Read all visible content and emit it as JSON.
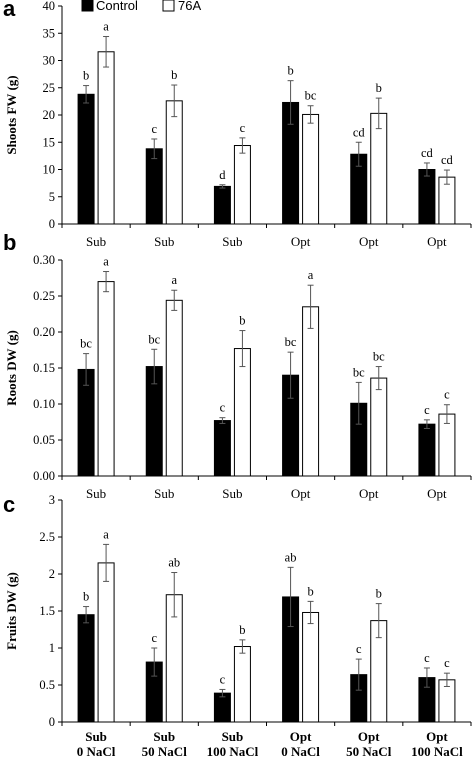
{
  "legend": [
    "Control",
    "76A"
  ],
  "colors": {
    "control": "#000000",
    "treated": "#ffffff",
    "stroke": "#000000"
  },
  "chart_data": [
    {
      "panel": "a",
      "type": "bar",
      "ylabel": "Shoots FW (g)",
      "ylim": [
        0,
        40
      ],
      "yticks": [
        "0",
        "5",
        "10",
        "15",
        "20",
        "25",
        "30",
        "35",
        "40"
      ],
      "categories": [
        [
          "Sub"
        ],
        [
          "Sub"
        ],
        [
          "Sub"
        ],
        [
          "Opt"
        ],
        [
          "Opt"
        ],
        [
          "Opt"
        ]
      ],
      "series": [
        {
          "name": "Control",
          "values": [
            23.8,
            13.8,
            6.9,
            22.3,
            12.8,
            10.0
          ],
          "errors": [
            1.6,
            1.8,
            0.3,
            4.0,
            2.2,
            1.2
          ],
          "labels": [
            "b",
            "c",
            "d",
            "b",
            "cd",
            "cd"
          ]
        },
        {
          "name": "76A",
          "values": [
            31.6,
            22.6,
            14.4,
            20.1,
            20.3,
            8.6
          ],
          "errors": [
            2.8,
            2.9,
            1.4,
            1.6,
            2.8,
            1.3
          ],
          "labels": [
            "a",
            "b",
            "c",
            "bc",
            "b",
            "cd"
          ]
        }
      ]
    },
    {
      "panel": "b",
      "type": "bar",
      "ylabel": "Roots DW (g)",
      "ylim": [
        0,
        0.3
      ],
      "yticks": [
        "0.00",
        "0.05",
        "0.10",
        "0.15",
        "0.20",
        "0.25",
        "0.30"
      ],
      "categories": [
        [
          "Sub"
        ],
        [
          "Sub"
        ],
        [
          "Sub"
        ],
        [
          "Opt"
        ],
        [
          "Opt"
        ],
        [
          "Opt"
        ]
      ],
      "series": [
        {
          "name": "Control",
          "values": [
            0.148,
            0.152,
            0.077,
            0.14,
            0.101,
            0.072
          ],
          "errors": [
            0.022,
            0.024,
            0.004,
            0.032,
            0.029,
            0.006
          ],
          "labels": [
            "bc",
            "bc",
            "c",
            "bc",
            "bc",
            "c"
          ]
        },
        {
          "name": "76A",
          "values": [
            0.27,
            0.244,
            0.177,
            0.235,
            0.136,
            0.086
          ],
          "errors": [
            0.014,
            0.014,
            0.025,
            0.03,
            0.016,
            0.013
          ],
          "labels": [
            "a",
            "a",
            "b",
            "a",
            "bc",
            "c"
          ]
        }
      ]
    },
    {
      "panel": "c",
      "type": "bar",
      "ylabel": "Fruits DW (g)",
      "ylim": [
        0,
        3
      ],
      "yticks": [
        "0",
        "0.5",
        "1",
        "1.5",
        "2",
        "2.5",
        "3"
      ],
      "categories": [
        [
          "Sub",
          "0 NaCl"
        ],
        [
          "Sub",
          "50 NaCl"
        ],
        [
          "Sub",
          "100 NaCl"
        ],
        [
          "Opt",
          "0 NaCl"
        ],
        [
          "Opt",
          "50 NaCl"
        ],
        [
          "Opt",
          "100 NaCl"
        ]
      ],
      "series": [
        {
          "name": "Control",
          "values": [
            1.45,
            0.81,
            0.39,
            1.69,
            0.64,
            0.6
          ],
          "errors": [
            0.11,
            0.19,
            0.05,
            0.4,
            0.21,
            0.13
          ],
          "labels": [
            "b",
            "c",
            "c",
            "ab",
            "c",
            "c"
          ]
        },
        {
          "name": "76A",
          "values": [
            2.15,
            1.72,
            1.02,
            1.48,
            1.37,
            0.57
          ],
          "errors": [
            0.25,
            0.3,
            0.09,
            0.15,
            0.23,
            0.09
          ],
          "labels": [
            "a",
            "ab",
            "b",
            "b",
            "b",
            "c"
          ]
        }
      ]
    }
  ]
}
